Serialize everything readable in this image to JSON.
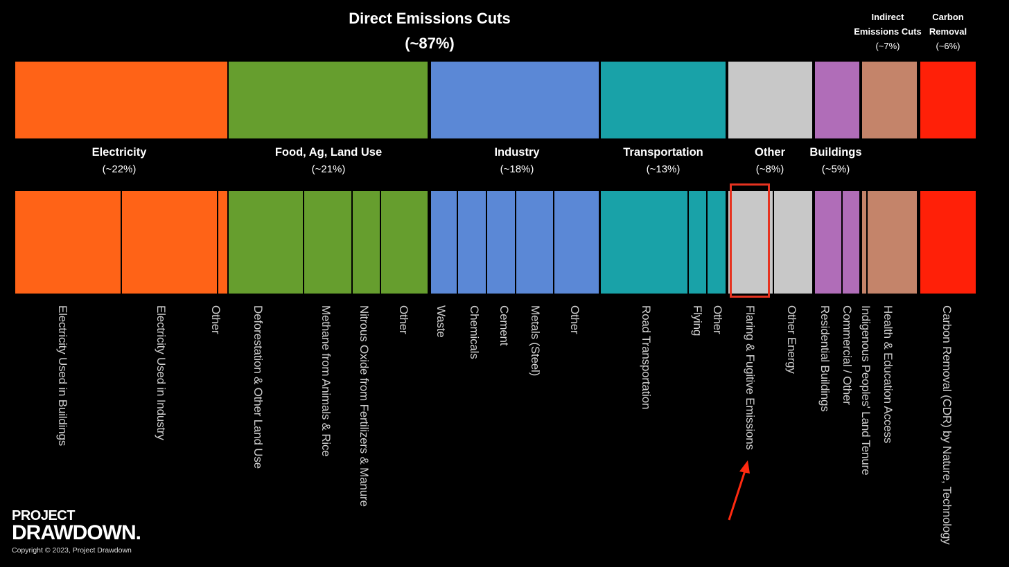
{
  "chart_data": {
    "type": "bar",
    "headers": {
      "direct": {
        "title": "Direct Emissions Cuts",
        "pct": "(~87%)"
      },
      "indirect": {
        "title_line1": "Indirect",
        "title_line2": "Emissions Cuts",
        "pct": "(~7%)"
      },
      "removal": {
        "title_line1": "Carbon",
        "title_line2": "Removal",
        "pct": "(~6%)"
      }
    },
    "categories": [
      {
        "key": "electricity",
        "title": "Electricity",
        "pct": "(~22%)",
        "share": 22,
        "color": "#ff6317",
        "subs": [
          {
            "label": "Electricity Used in Buildings"
          },
          {
            "label": "Electricity Used in Industry"
          },
          {
            "label": "Other"
          }
        ]
      },
      {
        "key": "food",
        "title": "Food, Ag, Land Use",
        "pct": "(~21%)",
        "share": 21,
        "color": "#669e2e",
        "subs": [
          {
            "label": "Deforestation & Other Land Use"
          },
          {
            "label": "Methane from Animals & Rice"
          },
          {
            "label": "Nitrous Oxide from Fertilizers & Manure"
          },
          {
            "label": "Other"
          }
        ]
      },
      {
        "key": "industry",
        "title": "Industry",
        "pct": "(~18%)",
        "share": 18,
        "color": "#5b88d6",
        "subs": [
          {
            "label": "Waste"
          },
          {
            "label": "Chemicals"
          },
          {
            "label": "Cement"
          },
          {
            "label": "Metals (Steel)"
          },
          {
            "label": "Other"
          }
        ]
      },
      {
        "key": "transportation",
        "title": "Transportation",
        "pct": "(~13%)",
        "share": 13,
        "color": "#19a2a8",
        "subs": [
          {
            "label": "Road Transportation"
          },
          {
            "label": "Flying"
          },
          {
            "label": "Other"
          }
        ]
      },
      {
        "key": "other",
        "title": "Other",
        "pct": "(~8%)",
        "share": 8,
        "color": "#c8c8c8",
        "subs": [
          {
            "label": "Flaring & Fugitive Emissions"
          },
          {
            "label": "Other Energy"
          }
        ]
      },
      {
        "key": "buildings",
        "title": "Buildings",
        "pct": "(~5%)",
        "share": 5,
        "color": "#b06db8",
        "subs": [
          {
            "label": "Residential Buildings"
          },
          {
            "label": "Commercial / Other"
          }
        ]
      },
      {
        "key": "indirect",
        "title": "",
        "pct": "",
        "share": 7,
        "color": "#c4846a",
        "subs": [
          {
            "label": "Indigenous Peoples' Land Tenure"
          },
          {
            "label": "Health & Education Access"
          }
        ]
      },
      {
        "key": "removal",
        "title": "",
        "pct": "",
        "share": 6,
        "color": "#ff2008",
        "subs": [
          {
            "label": "Carbon Removal (CDR) by Nature, Technology"
          }
        ]
      }
    ]
  },
  "logo": {
    "line1": "PROJECT",
    "line2": "DRAWDOWN."
  },
  "copyright": "Copyright © 2023, Project Drawdown"
}
